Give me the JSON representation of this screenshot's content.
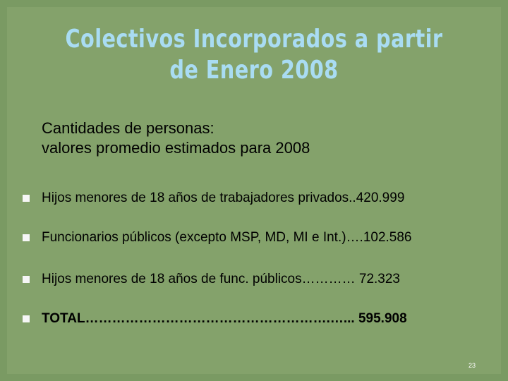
{
  "slide": {
    "title_lines": [
      "Colectivos Incorporados a partir",
      "de Enero 2008"
    ],
    "subtitle_lines": [
      "Cantidades de personas:",
      "valores promedio estimados para 2008"
    ],
    "bullets": [
      {
        "text": "Hijos menores de 18 años de trabajadores privados..420.999"
      },
      {
        "text": "Funcionarios públicos (excepto MSP, MD, MI e Int.)….102.586"
      },
      {
        "text": "Hijos menores de 18 años de func. públicos………… 72.323"
      },
      {
        "text": "TOTAL……………………………………………….…... 595.908"
      }
    ],
    "page_number": "23"
  },
  "colors": {
    "background": "#7a9a63",
    "panel": "#84a26b",
    "title": "#a9dcf3",
    "bullet_marker": "#f6f6f6",
    "text": "#000000",
    "page_number": "#ffffff"
  }
}
